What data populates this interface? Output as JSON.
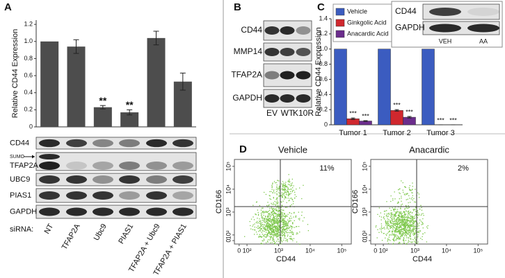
{
  "panel_labels": [
    "A",
    "B",
    "C",
    "D"
  ],
  "chart_data": [
    {
      "type": "bar",
      "y_label": "Relative CD44 Expression",
      "categories": [
        "NT",
        "TFAP2A",
        "Ubc9",
        "PIAS1",
        "TFAP2A + Ubc9",
        "TFAP2A + PIAS1"
      ],
      "values": [
        1.0,
        0.94,
        0.23,
        0.17,
        1.04,
        0.53
      ],
      "errors": [
        null,
        0.08,
        0.02,
        0.03,
        0.08,
        0.1
      ],
      "annotations": [
        null,
        null,
        "**",
        "**",
        null,
        null
      ],
      "color": "#4d4d4d",
      "ylim": [
        0,
        1.25
      ],
      "yticks": [
        0,
        0.2,
        0.4,
        0.6,
        0.8,
        {
          "value": 1,
          "label": "1.0"
        },
        1.2
      ]
    },
    {
      "type": "grouped-bar",
      "y_label": "Relative CD44 Expression",
      "categories": [
        "Tumor 1",
        "Tumor 2",
        "Tumor 3"
      ],
      "series": [
        {
          "name": "Vehicle",
          "color": "#3b5cc0",
          "values": [
            1,
            1,
            1
          ]
        },
        {
          "name": "Ginkgolic Acid",
          "color": "#d0282e",
          "values": [
            0.08,
            0.19,
            0
          ],
          "errors": [
            0.01,
            0.01,
            0
          ],
          "annotations": [
            "***",
            "***",
            "***"
          ]
        },
        {
          "name": "Anacardic Acid",
          "color": "#6b2d8c",
          "values": [
            0.05,
            0.1,
            0
          ],
          "errors": [
            0.005,
            0.01,
            0
          ],
          "annotations": [
            "***",
            "***",
            "***"
          ]
        }
      ],
      "ylim": [
        0,
        1.4
      ],
      "yticks": [
        0,
        0.2,
        0.4,
        0.6,
        0.8,
        {
          "value": 1,
          "label": "1.0"
        },
        1.2,
        1.4
      ],
      "legend": "top-left"
    },
    {
      "type": "flow",
      "title": "Vehicle",
      "x_label": "CD44",
      "y_label": "CD166",
      "quadrant_label": "11%",
      "log_scale": true,
      "xlim": [
        40,
        200000
      ],
      "ylim": [
        40,
        200000
      ],
      "xticks": [
        0,
        {
          "value": 100,
          "label": "10²"
        },
        {
          "value": 1000,
          "label": "10³"
        },
        {
          "value": 10000,
          "label": "10⁴"
        },
        {
          "value": 100000,
          "label": "10⁵"
        }
      ],
      "yticks": [
        0,
        {
          "value": 100,
          "label": "10²"
        },
        {
          "value": 1000,
          "label": "10³"
        },
        {
          "value": 10000,
          "label": "10⁴"
        },
        {
          "value": 100000,
          "label": "10⁵"
        }
      ]
    },
    {
      "type": "flow",
      "title": "Anacardic",
      "x_label": "CD44",
      "y_label": "CD166",
      "quadrant_label": "2%",
      "log_scale": true,
      "xlim": [
        40,
        200000
      ],
      "ylim": [
        40,
        200000
      ],
      "xticks": [
        0,
        {
          "value": 100,
          "label": "10²"
        },
        {
          "value": 1000,
          "label": "10³"
        },
        {
          "value": 10000,
          "label": "10⁴"
        },
        {
          "value": 100000,
          "label": "10⁵"
        }
      ],
      "yticks": [
        0,
        {
          "value": 100,
          "label": "10²"
        },
        {
          "value": 1000,
          "label": "10³"
        },
        {
          "value": 10000,
          "label": "10⁴"
        },
        {
          "value": 100000,
          "label": "10⁵"
        }
      ]
    }
  ],
  "blot_a": {
    "rows": [
      "CD44",
      "TFAP2A",
      "UBC9",
      "PIAS1",
      "GAPDH"
    ],
    "sumo": "SUMO",
    "lane_header": "siRNA:"
  },
  "blot_b": {
    "rows": [
      "CD44",
      "MMP14",
      "TFAP2A",
      "GAPDH"
    ],
    "lanes": [
      "EV",
      "WT",
      "K10R"
    ]
  },
  "blot_c": {
    "rows": [
      "CD44",
      "GAPDH"
    ],
    "lanes": [
      "VEH",
      "AA"
    ]
  }
}
